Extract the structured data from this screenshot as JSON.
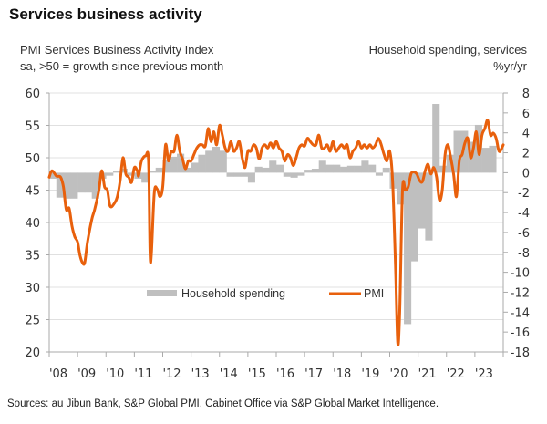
{
  "title": "Services business activity",
  "subtitle_left": [
    "PMI Services Business Activity Index",
    "sa, >50 = growth since previous month"
  ],
  "subtitle_right": [
    "Household spending, services",
    "%yr/yr"
  ],
  "source": "Sources: au Jibun Bank, S&P Global PMI, Cabinet Office via S&P Global Market Intelligence.",
  "colors": {
    "pmi": "#e8600c",
    "spending": "#bfbfbf",
    "grid": "#e0e0e0",
    "axis": "#aaaaaa"
  },
  "chart_data": {
    "type": "line+bar",
    "title": "Services business activity",
    "x_tick_labels": [
      "'08",
      "'09",
      "'10",
      "'11",
      "'12",
      "'13",
      "'14",
      "'15",
      "'16",
      "'17",
      "'18",
      "'19",
      "'20",
      "'21",
      "'22",
      "'23"
    ],
    "x_range": [
      2008.0,
      2024.0
    ],
    "left_axis": {
      "label": "PMI Services Business Activity Index, sa, >50 = growth since previous month",
      "range": [
        20,
        60
      ],
      "ticks": [
        20,
        25,
        30,
        35,
        40,
        45,
        50,
        55,
        60
      ]
    },
    "right_axis": {
      "label": "Household spending, services %yr/yr",
      "range": [
        -18,
        8
      ],
      "ticks": [
        -18,
        -16,
        -14,
        -12,
        -10,
        -8,
        -6,
        -4,
        -2,
        0,
        2,
        4,
        6,
        8
      ]
    },
    "grid": "horizontal",
    "legend": {
      "position": "bottom-center",
      "entries": [
        "Household spending",
        "PMI"
      ]
    },
    "series": [
      {
        "name": "Household spending",
        "type": "bar-step",
        "axis": "right",
        "quarterly": [
          {
            "x": 2008.0,
            "v": -0.6
          },
          {
            "x": 2008.25,
            "v": -2.5
          },
          {
            "x": 2008.5,
            "v": -2.6
          },
          {
            "x": 2008.75,
            "v": -2.6
          },
          {
            "x": 2009.0,
            "v": -2.0
          },
          {
            "x": 2009.25,
            "v": -2.0
          },
          {
            "x": 2009.5,
            "v": -2.6
          },
          {
            "x": 2009.75,
            "v": -0.6
          },
          {
            "x": 2010.0,
            "v": -0.3
          },
          {
            "x": 2010.25,
            "v": 0.2
          },
          {
            "x": 2010.5,
            "v": 0.4
          },
          {
            "x": 2010.75,
            "v": -0.3
          },
          {
            "x": 2011.0,
            "v": -0.6
          },
          {
            "x": 2011.25,
            "v": -1.0
          },
          {
            "x": 2011.5,
            "v": 0.2
          },
          {
            "x": 2011.75,
            "v": 0.5
          },
          {
            "x": 2012.0,
            "v": 1.3
          },
          {
            "x": 2012.25,
            "v": 1.6
          },
          {
            "x": 2012.5,
            "v": 1.9
          },
          {
            "x": 2012.75,
            "v": 0.5
          },
          {
            "x": 2013.0,
            "v": 1.0
          },
          {
            "x": 2013.25,
            "v": 1.8
          },
          {
            "x": 2013.5,
            "v": 2.2
          },
          {
            "x": 2013.75,
            "v": 2.6
          },
          {
            "x": 2014.0,
            "v": 2.2
          },
          {
            "x": 2014.25,
            "v": -0.4
          },
          {
            "x": 2014.5,
            "v": -0.4
          },
          {
            "x": 2014.75,
            "v": -0.4
          },
          {
            "x": 2015.0,
            "v": -1.0
          },
          {
            "x": 2015.25,
            "v": 0.6
          },
          {
            "x": 2015.5,
            "v": 0.5
          },
          {
            "x": 2015.75,
            "v": 1.2
          },
          {
            "x": 2016.0,
            "v": 0.8
          },
          {
            "x": 2016.25,
            "v": -0.4
          },
          {
            "x": 2016.5,
            "v": -0.5
          },
          {
            "x": 2016.75,
            "v": -0.3
          },
          {
            "x": 2017.0,
            "v": 0.3
          },
          {
            "x": 2017.25,
            "v": 0.4
          },
          {
            "x": 2017.5,
            "v": 1.2
          },
          {
            "x": 2017.75,
            "v": 0.8
          },
          {
            "x": 2018.0,
            "v": 0.8
          },
          {
            "x": 2018.25,
            "v": 0.6
          },
          {
            "x": 2018.5,
            "v": 0.7
          },
          {
            "x": 2018.75,
            "v": 0.7
          },
          {
            "x": 2019.0,
            "v": 1.2
          },
          {
            "x": 2019.25,
            "v": 0.8
          },
          {
            "x": 2019.5,
            "v": -0.3
          },
          {
            "x": 2019.75,
            "v": 0.5
          },
          {
            "x": 2020.0,
            "v": -1.6
          },
          {
            "x": 2020.25,
            "v": -3.2
          },
          {
            "x": 2020.5,
            "v": -15.2
          },
          {
            "x": 2020.75,
            "v": -8.9
          },
          {
            "x": 2021.0,
            "v": -5.6
          },
          {
            "x": 2021.25,
            "v": -6.8
          },
          {
            "x": 2021.5,
            "v": 6.9
          },
          {
            "x": 2021.75,
            "v": 0.7
          },
          {
            "x": 2022.0,
            "v": 1.8
          },
          {
            "x": 2022.25,
            "v": 4.2
          },
          {
            "x": 2022.5,
            "v": 4.2
          },
          {
            "x": 2022.75,
            "v": 3.1
          },
          {
            "x": 2023.0,
            "v": 4.8
          },
          {
            "x": 2023.25,
            "v": 2.5
          },
          {
            "x": 2023.5,
            "v": 2.7
          }
        ]
      },
      {
        "name": "PMI",
        "type": "line",
        "axis": "left",
        "points": [
          [
            2008.0,
            47.0
          ],
          [
            2008.1,
            48.0
          ],
          [
            2008.25,
            47.2
          ],
          [
            2008.4,
            47.0
          ],
          [
            2008.5,
            45.5
          ],
          [
            2008.6,
            42.0
          ],
          [
            2008.7,
            42.2
          ],
          [
            2008.8,
            39.5
          ],
          [
            2008.9,
            37.8
          ],
          [
            2009.0,
            37.0
          ],
          [
            2009.08,
            35.0
          ],
          [
            2009.17,
            33.8
          ],
          [
            2009.25,
            33.8
          ],
          [
            2009.35,
            37.0
          ],
          [
            2009.5,
            40.5
          ],
          [
            2009.6,
            42.0
          ],
          [
            2009.75,
            45.0
          ],
          [
            2009.85,
            48.0
          ],
          [
            2009.95,
            45.5
          ],
          [
            2010.05,
            45.0
          ],
          [
            2010.15,
            42.5
          ],
          [
            2010.3,
            43.0
          ],
          [
            2010.4,
            44.0
          ],
          [
            2010.5,
            46.5
          ],
          [
            2010.6,
            50.0
          ],
          [
            2010.7,
            47.5
          ],
          [
            2010.8,
            47.0
          ],
          [
            2010.9,
            46.2
          ],
          [
            2011.0,
            48.5
          ],
          [
            2011.1,
            48.0
          ],
          [
            2011.15,
            47.2
          ],
          [
            2011.25,
            49.5
          ],
          [
            2011.4,
            50.3
          ],
          [
            2011.5,
            49.5
          ],
          [
            2011.55,
            35.5
          ],
          [
            2011.6,
            35.0
          ],
          [
            2011.7,
            44.5
          ],
          [
            2011.8,
            45.2
          ],
          [
            2011.9,
            44.0
          ],
          [
            2012.0,
            45.5
          ],
          [
            2012.1,
            52.0
          ],
          [
            2012.2,
            49.5
          ],
          [
            2012.3,
            51.0
          ],
          [
            2012.4,
            51.0
          ],
          [
            2012.5,
            53.5
          ],
          [
            2012.6,
            51.0
          ],
          [
            2012.7,
            49.8
          ],
          [
            2012.8,
            48.3
          ],
          [
            2012.9,
            49.5
          ],
          [
            2013.0,
            49.5
          ],
          [
            2013.1,
            50.5
          ],
          [
            2013.2,
            51.5
          ],
          [
            2013.3,
            52.0
          ],
          [
            2013.4,
            52.0
          ],
          [
            2013.5,
            51.8
          ],
          [
            2013.6,
            54.5
          ],
          [
            2013.7,
            52.5
          ],
          [
            2013.8,
            54.0
          ],
          [
            2013.9,
            52.0
          ],
          [
            2014.0,
            55.0
          ],
          [
            2014.1,
            53.5
          ],
          [
            2014.2,
            51.5
          ],
          [
            2014.3,
            51.0
          ],
          [
            2014.4,
            52.5
          ],
          [
            2014.5,
            51.0
          ],
          [
            2014.6,
            51.5
          ],
          [
            2014.7,
            52.5
          ],
          [
            2014.8,
            50.0
          ],
          [
            2014.9,
            48.5
          ],
          [
            2015.0,
            51.0
          ],
          [
            2015.1,
            51.0
          ],
          [
            2015.2,
            52.0
          ],
          [
            2015.3,
            51.5
          ],
          [
            2015.4,
            49.8
          ],
          [
            2015.5,
            51.5
          ],
          [
            2015.6,
            52.0
          ],
          [
            2015.7,
            51.5
          ],
          [
            2015.8,
            52.3
          ],
          [
            2015.9,
            51.5
          ],
          [
            2016.0,
            52.5
          ],
          [
            2016.1,
            51.5
          ],
          [
            2016.2,
            51.0
          ],
          [
            2016.3,
            49.5
          ],
          [
            2016.4,
            50.5
          ],
          [
            2016.5,
            50.0
          ],
          [
            2016.6,
            48.8
          ],
          [
            2016.7,
            50.0
          ],
          [
            2016.8,
            51.5
          ],
          [
            2016.9,
            52.0
          ],
          [
            2017.0,
            51.8
          ],
          [
            2017.1,
            53.0
          ],
          [
            2017.2,
            52.5
          ],
          [
            2017.3,
            52.0
          ],
          [
            2017.4,
            52.0
          ],
          [
            2017.5,
            53.5
          ],
          [
            2017.6,
            51.5
          ],
          [
            2017.7,
            51.5
          ],
          [
            2017.8,
            52.0
          ],
          [
            2017.9,
            51.0
          ],
          [
            2018.0,
            52.5
          ],
          [
            2018.1,
            51.0
          ],
          [
            2018.2,
            51.5
          ],
          [
            2018.3,
            52.0
          ],
          [
            2018.4,
            51.5
          ],
          [
            2018.5,
            52.0
          ],
          [
            2018.6,
            50.0
          ],
          [
            2018.7,
            51.0
          ],
          [
            2018.8,
            51.5
          ],
          [
            2018.9,
            52.5
          ],
          [
            2019.0,
            51.5
          ],
          [
            2019.1,
            52.0
          ],
          [
            2019.2,
            51.5
          ],
          [
            2019.3,
            52.0
          ],
          [
            2019.4,
            51.5
          ],
          [
            2019.5,
            52.0
          ],
          [
            2019.6,
            53.0
          ],
          [
            2019.7,
            52.0
          ],
          [
            2019.8,
            50.5
          ],
          [
            2019.9,
            49.5
          ],
          [
            2020.0,
            51.0
          ],
          [
            2020.1,
            46.5
          ],
          [
            2020.2,
            33.8
          ],
          [
            2020.28,
            21.5
          ],
          [
            2020.35,
            26.0
          ],
          [
            2020.45,
            45.0
          ],
          [
            2020.55,
            45.0
          ],
          [
            2020.65,
            45.5
          ],
          [
            2020.75,
            47.5
          ],
          [
            2020.85,
            47.8
          ],
          [
            2020.95,
            47.5
          ],
          [
            2021.05,
            46.5
          ],
          [
            2021.15,
            46.3
          ],
          [
            2021.25,
            48.0
          ],
          [
            2021.35,
            49.0
          ],
          [
            2021.45,
            47.5
          ],
          [
            2021.55,
            48.5
          ],
          [
            2021.65,
            47.0
          ],
          [
            2021.75,
            43.5
          ],
          [
            2021.85,
            45.0
          ],
          [
            2021.95,
            50.5
          ],
          [
            2022.05,
            52.0
          ],
          [
            2022.15,
            50.0
          ],
          [
            2022.25,
            47.5
          ],
          [
            2022.35,
            44.0
          ],
          [
            2022.45,
            49.5
          ],
          [
            2022.55,
            50.5
          ],
          [
            2022.65,
            52.3
          ],
          [
            2022.75,
            53.0
          ],
          [
            2022.85,
            50.0
          ],
          [
            2022.95,
            51.5
          ],
          [
            2023.05,
            54.0
          ],
          [
            2023.15,
            50.5
          ],
          [
            2023.25,
            53.5
          ],
          [
            2023.35,
            54.5
          ],
          [
            2023.45,
            55.8
          ],
          [
            2023.55,
            53.5
          ],
          [
            2023.65,
            53.8
          ],
          [
            2023.75,
            53.0
          ],
          [
            2023.85,
            51.0
          ],
          [
            2023.95,
            51.5
          ],
          [
            2024.0,
            52.0
          ]
        ]
      }
    ]
  }
}
